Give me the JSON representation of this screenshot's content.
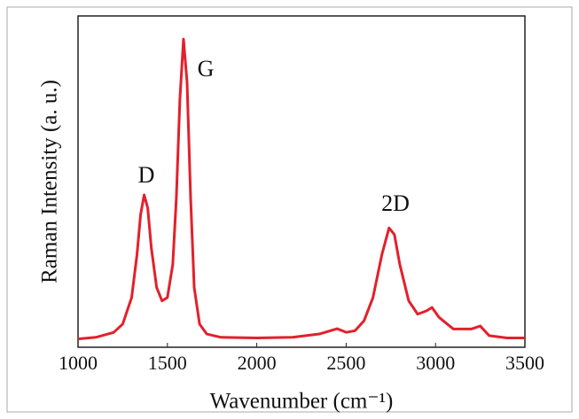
{
  "chart_data": {
    "type": "line",
    "x_label": "Wavenumber (cm⁻¹)",
    "y_label": "Raman Intensity (a. u.)",
    "annotations": [
      "D",
      "G",
      "2D"
    ],
    "x": [
      1000,
      1100,
      1200,
      1250,
      1300,
      1330,
      1350,
      1370,
      1390,
      1410,
      1440,
      1470,
      1500,
      1530,
      1550,
      1570,
      1590,
      1610,
      1630,
      1650,
      1680,
      1720,
      1800,
      2000,
      2200,
      2350,
      2450,
      2500,
      2550,
      2600,
      2650,
      2700,
      2740,
      2770,
      2800,
      2850,
      2900,
      2950,
      2980,
      3020,
      3100,
      3200,
      3250,
      3300,
      3400,
      3500
    ],
    "series": [
      {
        "color": "#e3202b",
        "values": [
          0.025,
          0.03,
          0.045,
          0.07,
          0.15,
          0.28,
          0.4,
          0.46,
          0.42,
          0.3,
          0.18,
          0.14,
          0.15,
          0.25,
          0.45,
          0.75,
          0.93,
          0.8,
          0.45,
          0.18,
          0.07,
          0.04,
          0.03,
          0.028,
          0.03,
          0.04,
          0.056,
          0.045,
          0.05,
          0.08,
          0.15,
          0.28,
          0.36,
          0.34,
          0.25,
          0.14,
          0.1,
          0.11,
          0.12,
          0.09,
          0.055,
          0.055,
          0.064,
          0.035,
          0.028,
          0.028
        ]
      }
    ],
    "xlim": [
      1000,
      3500
    ],
    "xticks": [
      1000,
      1500,
      2000,
      2500,
      3000,
      3500
    ],
    "ylim": [
      0,
      1
    ]
  }
}
